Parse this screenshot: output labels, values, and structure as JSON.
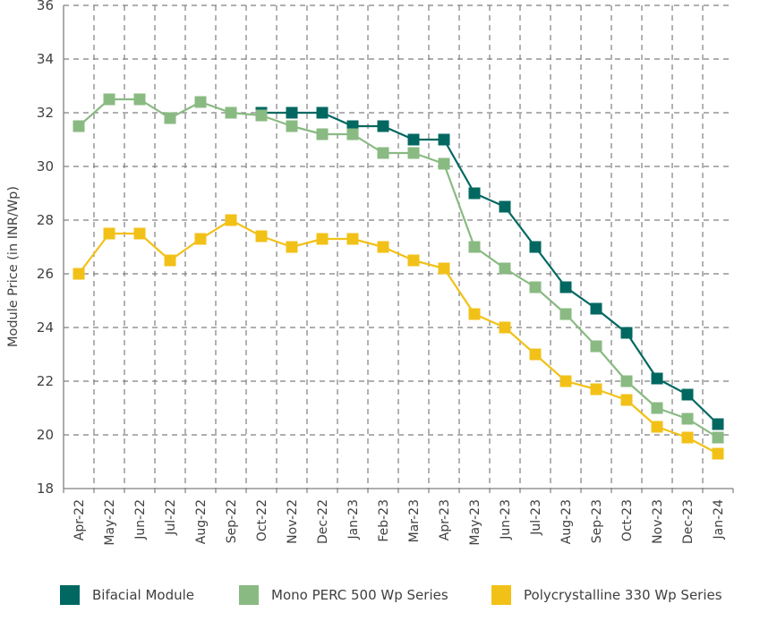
{
  "chart_data": {
    "type": "line",
    "title": "",
    "xlabel": "",
    "ylabel": "Module Price (in INR/Wp)",
    "ylim": [
      18,
      36
    ],
    "yticks": [
      18,
      20,
      22,
      24,
      26,
      28,
      30,
      32,
      34,
      36
    ],
    "grid": true,
    "legend_position": "bottom",
    "categories": [
      "Apr-22",
      "May-22",
      "Jun-22",
      "Jul-22",
      "Aug-22",
      "Sep-22",
      "Oct-22",
      "Nov-22",
      "Dec-22",
      "Jan-23",
      "Feb-23",
      "Mar-23",
      "Apr-23",
      "May-23",
      "Jun-23",
      "Jul-23",
      "Aug-23",
      "Sep-23",
      "Oct-23",
      "Nov-23",
      "Dec-23",
      "Jan-24"
    ],
    "series": [
      {
        "name": "Bifacial Module",
        "color": "#006861",
        "values": [
          null,
          null,
          null,
          null,
          null,
          null,
          32.0,
          32.0,
          32.0,
          31.5,
          31.5,
          31.0,
          31.0,
          29.0,
          28.5,
          27.0,
          25.5,
          24.7,
          23.8,
          22.1,
          21.5,
          20.4
        ]
      },
      {
        "name": "Mono PERC 500 Wp Series",
        "color": "#89BA82",
        "values": [
          31.5,
          32.5,
          32.5,
          31.8,
          32.4,
          32.0,
          31.9,
          31.5,
          31.2,
          31.2,
          30.5,
          30.5,
          30.1,
          27.0,
          26.2,
          25.5,
          24.5,
          23.3,
          22.0,
          21.0,
          20.6,
          19.9
        ]
      },
      {
        "name": "Polycrystalline 330 Wp Series",
        "color": "#F2C118",
        "values": [
          26.0,
          27.5,
          27.5,
          26.5,
          27.3,
          28.0,
          27.4,
          27.0,
          27.3,
          27.3,
          27.0,
          26.5,
          26.2,
          24.5,
          24.0,
          23.0,
          22.0,
          21.7,
          21.3,
          20.3,
          19.9,
          19.3
        ]
      }
    ]
  },
  "legend": {
    "items": [
      {
        "label": "Bifacial Module",
        "color": "#006861"
      },
      {
        "label": "Mono PERC 500 Wp Series",
        "color": "#89BA82"
      },
      {
        "label": "Polycrystalline 330 Wp Series",
        "color": "#F2C118"
      }
    ]
  }
}
